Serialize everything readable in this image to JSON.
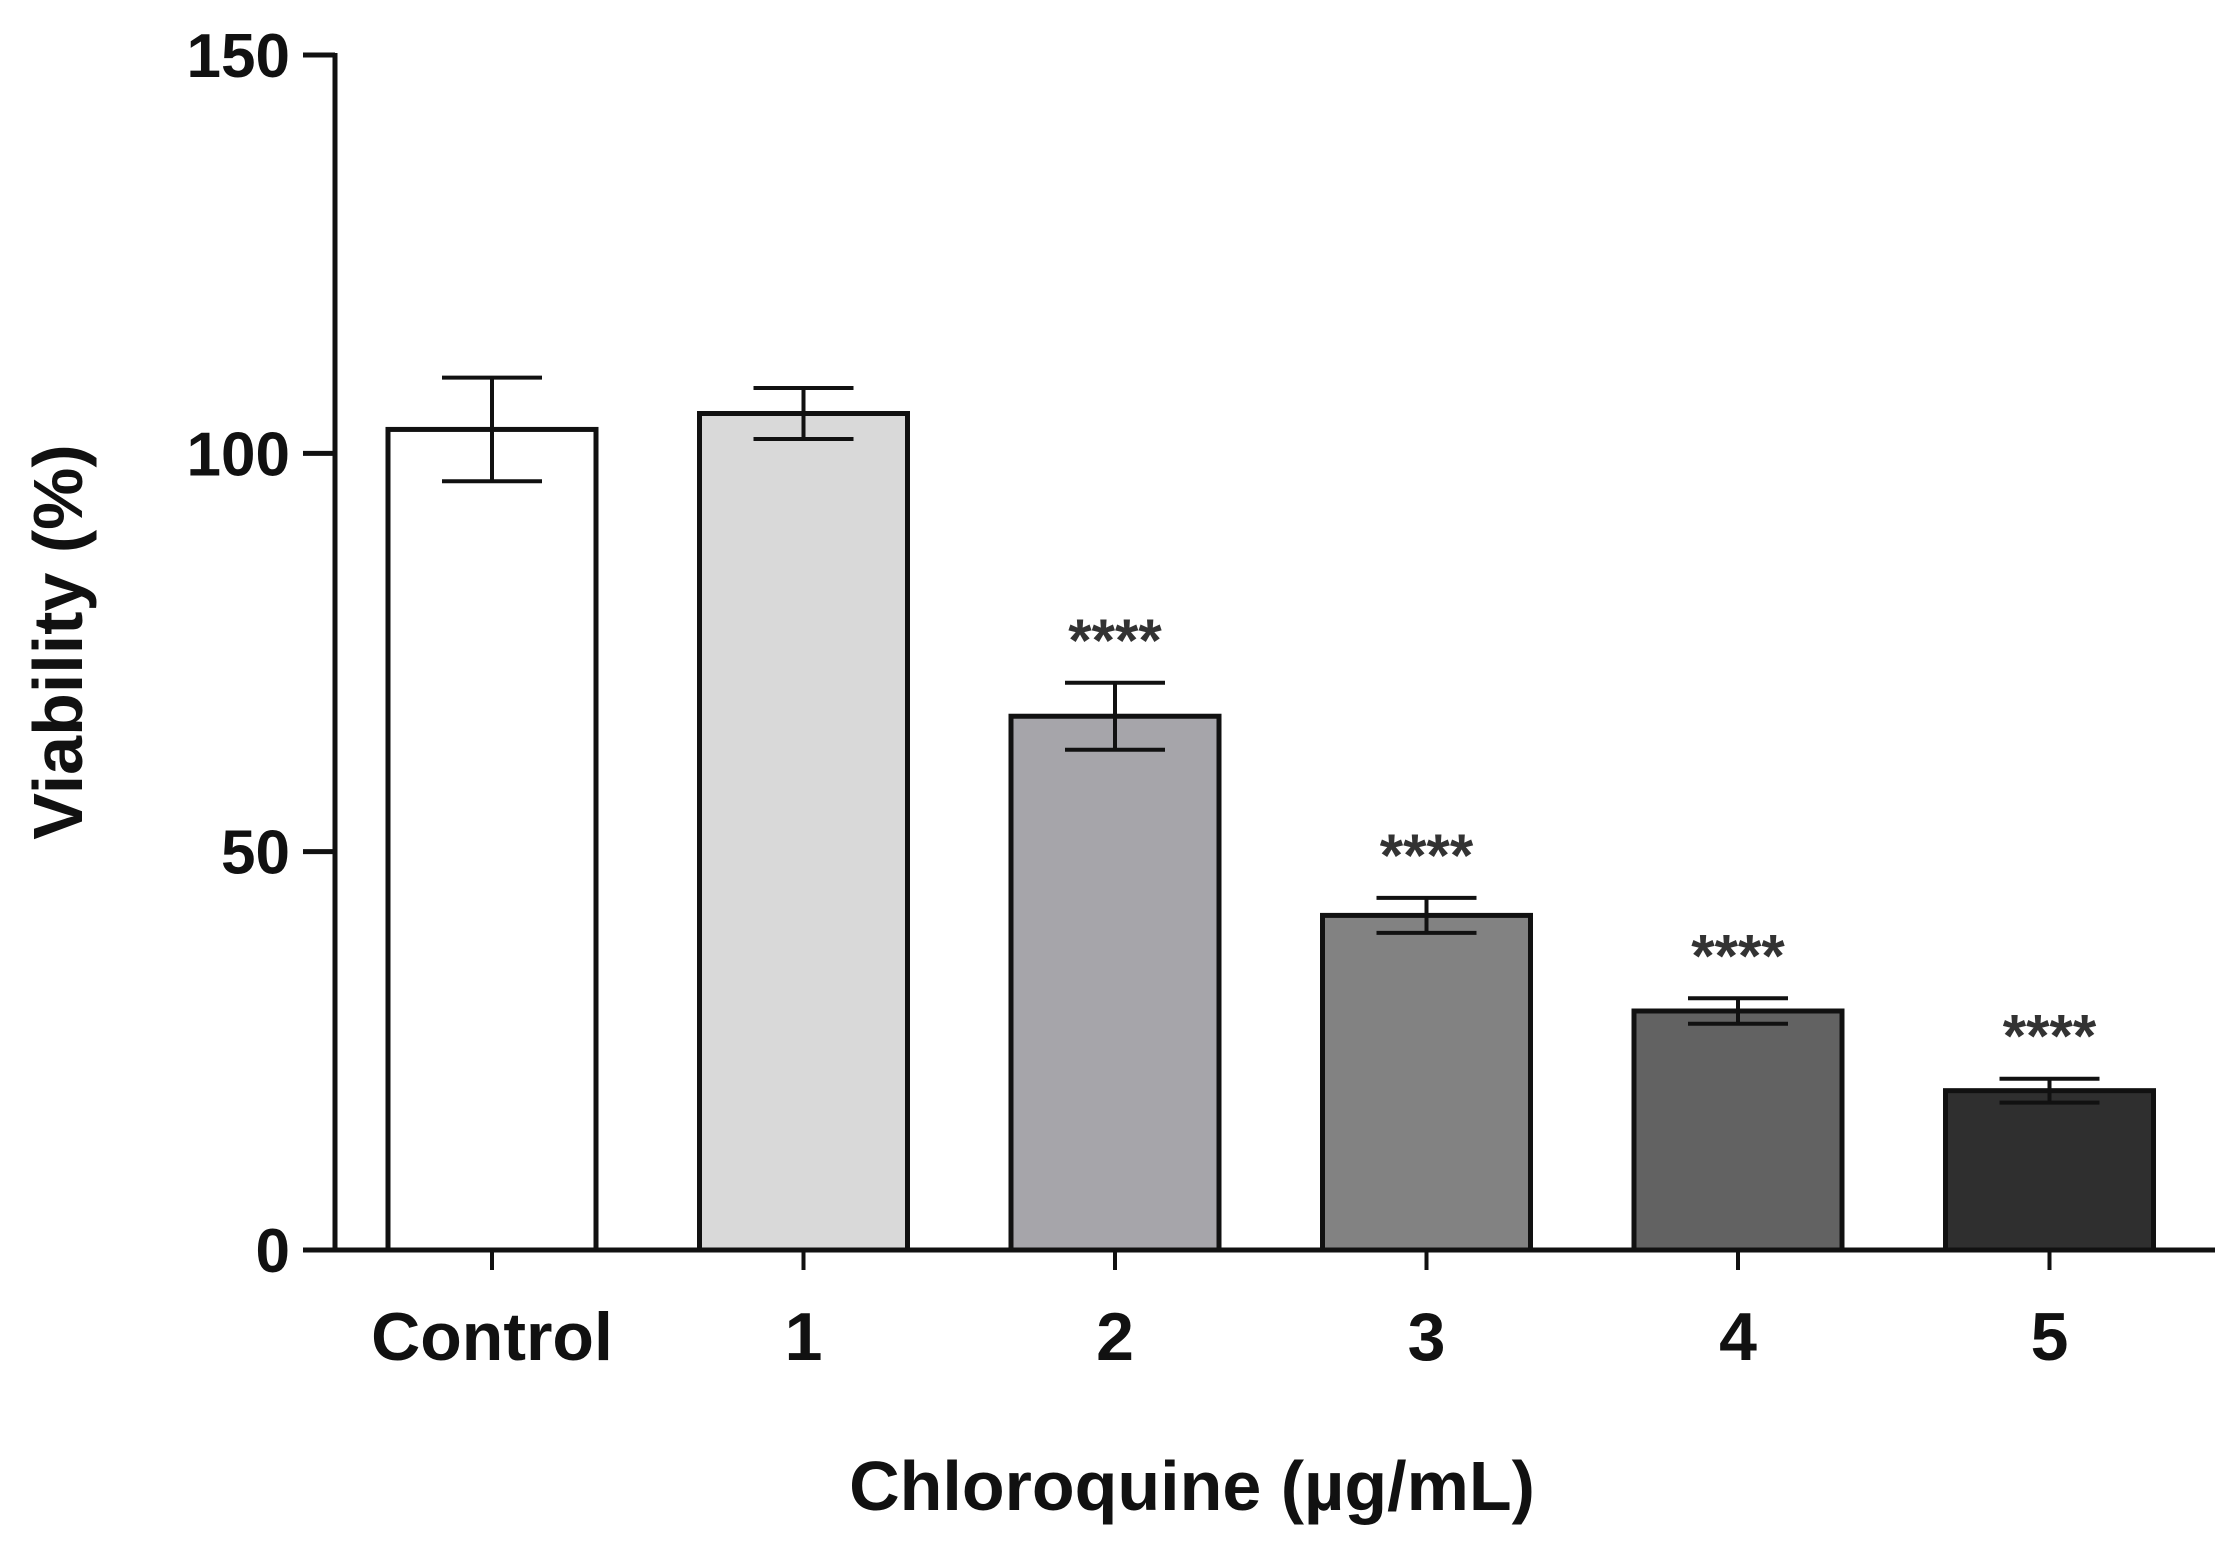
{
  "chart_data": {
    "type": "bar",
    "title": "",
    "xlabel": "Chloroquine (µg/mL)",
    "ylabel": "Viability (%)",
    "ylim": [
      0,
      150
    ],
    "yticks": [
      0,
      50,
      100,
      150
    ],
    "categories": [
      "Control",
      "1",
      "2",
      "3",
      "4",
      "5"
    ],
    "series": [
      {
        "values": [
          103,
          105,
          67,
          42,
          30,
          20
        ],
        "errors": [
          6.5,
          3.2,
          4.2,
          2.2,
          1.6,
          1.5
        ],
        "annotations": [
          "",
          "",
          "****",
          "****",
          "****",
          "****"
        ]
      }
    ],
    "bar_colors": [
      "#ffffff",
      "#d9d9d9",
      "#a6a5aa",
      "#828282",
      "#626262",
      "#2f2f2f"
    ],
    "grid": false,
    "legend": "none"
  }
}
